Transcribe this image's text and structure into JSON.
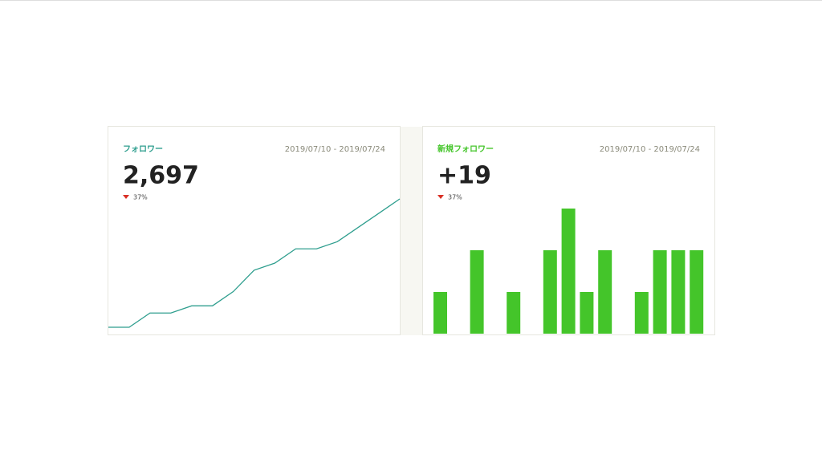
{
  "chart_data": [
    {
      "type": "line",
      "title": "フォロワー",
      "date_range": "2019/07/10 - 2019/07/24",
      "total": "2,697",
      "change": "37%",
      "color": "#2e9e8e",
      "values": [
        2679,
        2679,
        2681,
        2681,
        2682,
        2682,
        2684,
        2687,
        2688,
        2690,
        2690,
        2691,
        2693,
        2695,
        2697
      ]
    },
    {
      "type": "bar",
      "title": "新規フォロワー",
      "date_range": "2019/07/10 - 2019/07/24",
      "total": "+19",
      "change": "37%",
      "color": "#44c52a",
      "values": [
        1,
        0,
        2,
        0,
        1,
        0,
        2,
        3,
        1,
        2,
        0,
        1,
        2,
        2,
        2
      ]
    }
  ]
}
